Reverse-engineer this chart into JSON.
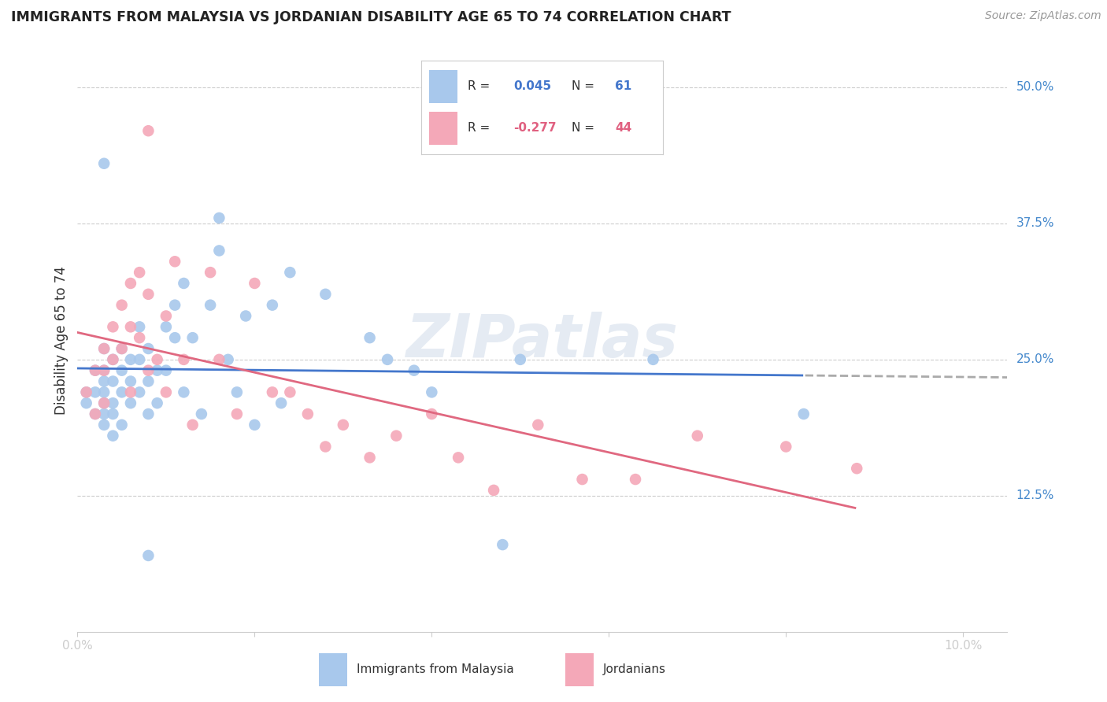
{
  "title": "IMMIGRANTS FROM MALAYSIA VS JORDANIAN DISABILITY AGE 65 TO 74 CORRELATION CHART",
  "source": "Source: ZipAtlas.com",
  "ylabel": "Disability Age 65 to 74",
  "ylim": [
    0.0,
    0.535
  ],
  "xlim": [
    0.0,
    0.105
  ],
  "r_malaysia": 0.045,
  "n_malaysia": 61,
  "r_jordanian": -0.277,
  "n_jordanian": 44,
  "color_malaysia": "#a8c8ec",
  "color_jordanian": "#f4a8b8",
  "trendline_malaysia_color": "#4477cc",
  "trendline_jordanian_color": "#e06880",
  "trendline_extension_color": "#aaaaaa",
  "watermark": "ZIPatlas",
  "malaysia_x": [
    0.001,
    0.001,
    0.002,
    0.002,
    0.002,
    0.003,
    0.003,
    0.003,
    0.003,
    0.003,
    0.003,
    0.003,
    0.004,
    0.004,
    0.004,
    0.004,
    0.004,
    0.005,
    0.005,
    0.005,
    0.005,
    0.006,
    0.006,
    0.006,
    0.007,
    0.007,
    0.007,
    0.008,
    0.008,
    0.008,
    0.009,
    0.009,
    0.01,
    0.01,
    0.011,
    0.011,
    0.012,
    0.012,
    0.013,
    0.014,
    0.015,
    0.016,
    0.016,
    0.017,
    0.018,
    0.019,
    0.02,
    0.022,
    0.023,
    0.024,
    0.028,
    0.033,
    0.035,
    0.038,
    0.04,
    0.048,
    0.05,
    0.065,
    0.082,
    0.003,
    0.008
  ],
  "malaysia_y": [
    0.22,
    0.21,
    0.24,
    0.22,
    0.2,
    0.26,
    0.24,
    0.22,
    0.2,
    0.19,
    0.23,
    0.21,
    0.25,
    0.23,
    0.21,
    0.2,
    0.18,
    0.26,
    0.24,
    0.22,
    0.19,
    0.25,
    0.23,
    0.21,
    0.28,
    0.25,
    0.22,
    0.26,
    0.23,
    0.2,
    0.24,
    0.21,
    0.28,
    0.24,
    0.3,
    0.27,
    0.32,
    0.22,
    0.27,
    0.2,
    0.3,
    0.38,
    0.35,
    0.25,
    0.22,
    0.29,
    0.19,
    0.3,
    0.21,
    0.33,
    0.31,
    0.27,
    0.25,
    0.24,
    0.22,
    0.08,
    0.25,
    0.25,
    0.2,
    0.43,
    0.07
  ],
  "jordanian_x": [
    0.001,
    0.002,
    0.002,
    0.003,
    0.003,
    0.003,
    0.004,
    0.004,
    0.005,
    0.005,
    0.006,
    0.006,
    0.006,
    0.007,
    0.007,
    0.008,
    0.008,
    0.009,
    0.01,
    0.01,
    0.011,
    0.012,
    0.013,
    0.015,
    0.016,
    0.018,
    0.02,
    0.022,
    0.024,
    0.026,
    0.028,
    0.03,
    0.033,
    0.036,
    0.04,
    0.043,
    0.047,
    0.052,
    0.057,
    0.063,
    0.07,
    0.08,
    0.088,
    0.008
  ],
  "jordanian_y": [
    0.22,
    0.24,
    0.2,
    0.26,
    0.24,
    0.21,
    0.28,
    0.25,
    0.3,
    0.26,
    0.32,
    0.28,
    0.22,
    0.33,
    0.27,
    0.31,
    0.24,
    0.25,
    0.29,
    0.22,
    0.34,
    0.25,
    0.19,
    0.33,
    0.25,
    0.2,
    0.32,
    0.22,
    0.22,
    0.2,
    0.17,
    0.19,
    0.16,
    0.18,
    0.2,
    0.16,
    0.13,
    0.19,
    0.14,
    0.14,
    0.18,
    0.17,
    0.15,
    0.46
  ]
}
